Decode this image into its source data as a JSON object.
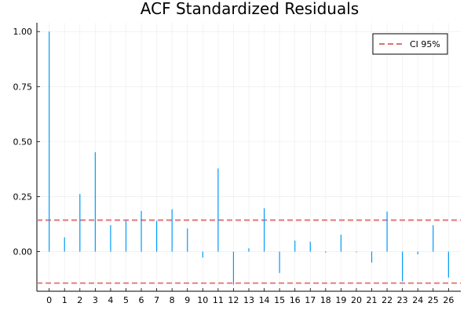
{
  "chart_data": {
    "type": "bar",
    "title": "ACF Standardized  Residuals",
    "xlabel": "",
    "ylabel": "",
    "x": [
      0,
      1,
      2,
      3,
      4,
      5,
      6,
      7,
      8,
      9,
      10,
      11,
      12,
      13,
      14,
      15,
      16,
      17,
      18,
      19,
      20,
      21,
      22,
      23,
      24,
      25,
      26
    ],
    "series": [
      {
        "name": "",
        "color": "#009af9",
        "values": [
          1.0,
          0.065,
          0.262,
          0.452,
          0.12,
          0.14,
          0.185,
          0.14,
          0.193,
          0.105,
          -0.027,
          0.378,
          -0.15,
          0.015,
          0.197,
          -0.097,
          0.05,
          0.045,
          -0.005,
          0.077,
          -0.003,
          -0.05,
          0.182,
          -0.135,
          -0.012,
          0.12,
          -0.118
        ]
      }
    ],
    "ci": {
      "label": "CI 95%",
      "upper": 0.143,
      "lower": -0.143,
      "color": "#e26f6f"
    },
    "xlim": [
      -0.8,
      26.8
    ],
    "ylim": [
      -0.18,
      1.04
    ],
    "x_ticks": [
      0,
      1,
      2,
      3,
      4,
      5,
      6,
      7,
      8,
      9,
      10,
      11,
      12,
      13,
      14,
      15,
      16,
      17,
      18,
      19,
      20,
      21,
      22,
      23,
      24,
      25,
      26
    ],
    "y_ticks": [
      0.0,
      0.25,
      0.5,
      0.75,
      1.0
    ],
    "y_tick_labels": [
      "0.00",
      "0.25",
      "0.50",
      "0.75",
      "1.00"
    ],
    "grid": true,
    "legend_position": "top-right"
  }
}
